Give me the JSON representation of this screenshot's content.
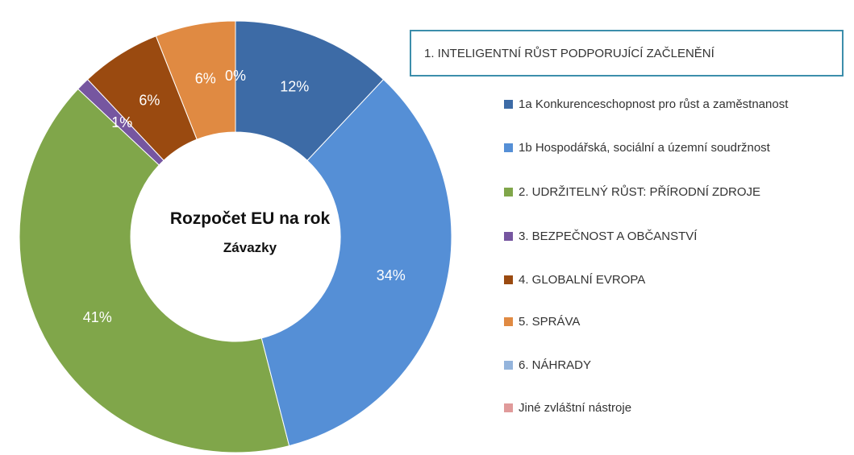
{
  "chart_data": {
    "type": "donut",
    "title": "Rozpočet EU na rok",
    "subtitle": "Závazky",
    "legend_title": "1. INTELIGENTNÍ RŮST PODPORUJÍCÍ ZAČLENĚNÍ",
    "categories": [
      "1a Konkurenceschopnost pro růst a zaměstnanost",
      "1b Hospodářská, sociální a územní soudržnost",
      "2. UDRŽITELNÝ RŮST: PŘÍRODNÍ ZDROJE",
      "3. BEZPEČNOST A OBČANSTVÍ",
      "4. GLOBALNÍ EVROPA",
      "5. SPRÁVA",
      "6. NÁHRADY",
      "Jiné zvláštní nástroje"
    ],
    "values": [
      12,
      34,
      41,
      1,
      6,
      6,
      0,
      0
    ],
    "value_labels": [
      "12%",
      "34%",
      "41%",
      "1%",
      "6%",
      "6%",
      null,
      "0%"
    ],
    "colors": [
      "#3d6ba6",
      "#558fd6",
      "#80a64a",
      "#7656a0",
      "#9a4a10",
      "#e08a42",
      "#94b4dc",
      "#e09a9a"
    ],
    "legend": "right"
  }
}
